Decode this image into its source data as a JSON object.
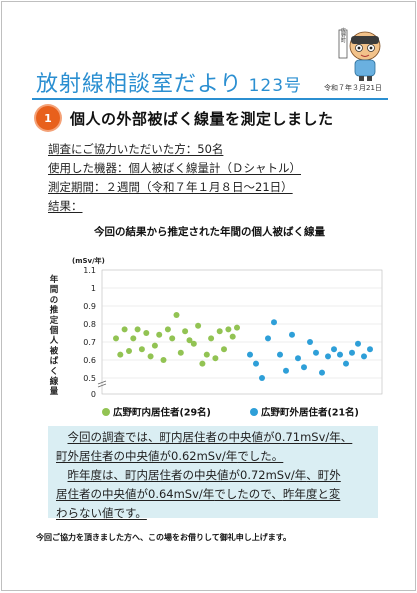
{
  "header": {
    "mascot_label": "広野町",
    "title": "放射線相談室だより",
    "issue_number": "123号",
    "date": "令和７年３月21日"
  },
  "section": {
    "number": "1",
    "title": "個人の外部被ばく線量を測定しました"
  },
  "info": {
    "participants": "調査にご協力いただいた方：50名",
    "device": "使用した機器：個人被ばく線量計（Ｄシャトル）",
    "period": "測定期間：２週間（令和７年１月８日～21日）",
    "results_label": "結果："
  },
  "chart_data": {
    "type": "scatter",
    "title": "今回の結果から推定された年間の個人被ばく線量",
    "unit_label": "(mSv/年)",
    "ylabel": "年間の推定個人被ばく線量",
    "ylim": [
      0,
      1.1
    ],
    "yticks": [
      "1.1",
      "1",
      "0.9",
      "0.8",
      "0.7",
      "0.6",
      "0.5",
      "0"
    ],
    "axis_break": true,
    "grid": true,
    "legend_position": "bottom",
    "series": [
      {
        "name": "広野町内居住者(29名)",
        "color": "#92c353",
        "x": [
          1,
          2,
          3,
          4,
          5,
          6,
          7,
          8,
          9,
          10,
          11,
          12,
          13,
          14,
          15,
          16,
          17,
          18,
          19,
          20,
          21,
          22,
          23,
          24,
          25,
          26,
          27,
          28,
          29
        ],
        "values": [
          0.72,
          0.63,
          0.77,
          0.65,
          0.72,
          0.77,
          0.66,
          0.75,
          0.62,
          0.68,
          0.74,
          0.6,
          0.77,
          0.72,
          0.85,
          0.64,
          0.76,
          0.71,
          0.69,
          0.79,
          0.58,
          0.63,
          0.72,
          0.61,
          0.76,
          0.66,
          0.77,
          0.73,
          0.78
        ]
      },
      {
        "name": "広野町外居住者(21名)",
        "color": "#2e9fd8",
        "x": [
          1,
          2,
          3,
          4,
          5,
          6,
          7,
          8,
          9,
          10,
          11,
          12,
          13,
          14,
          15,
          16,
          17,
          18,
          19,
          20,
          21
        ],
        "values": [
          0.63,
          0.58,
          0.5,
          0.72,
          0.81,
          0.63,
          0.54,
          0.74,
          0.61,
          0.56,
          0.7,
          0.64,
          0.53,
          0.62,
          0.66,
          0.63,
          0.58,
          0.64,
          0.69,
          0.62,
          0.66
        ]
      }
    ]
  },
  "summary": {
    "line1": "今回の調査では、町内居住者の中央値が",
    "value1": "0.71mSv/年",
    "line1b": "、",
    "line2": "町外居住者の中央値が",
    "value2": "0.62mSv/年",
    "line2b": "でした。",
    "line3": "昨年度は、町内居住者の中央値が",
    "value3": "0.72mSv/年",
    "line3b": "、町外",
    "line4a": "居住者の中央値が",
    "value4": "0.64mSv/年",
    "line4b": "でしたので、",
    "line4c": "昨年度と変",
    "line5": "わらない値です。"
  },
  "footer": "今回ご協力を頂きました方へ、この場をお借りして御礼申し上げます。"
}
